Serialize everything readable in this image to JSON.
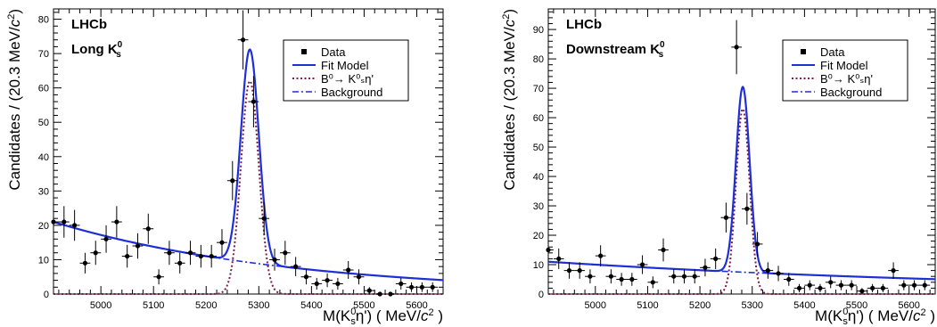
{
  "chart_data": [
    {
      "type": "scatter",
      "panel_label_top": "LHCb",
      "panel_label_bottom": "Long K",
      "panel_label_sub": "s",
      "panel_label_sup": "0",
      "ylabel_main": "Candidates / (20.3 MeV/",
      "ylabel_var": "c",
      "ylabel_sup": "2",
      "ylabel_end": ")",
      "xlabel_main": "M(K",
      "xlabel_sub": "s",
      "xlabel_sup": "0",
      "xlabel_mid": "η') ( MeV/",
      "xlabel_var": "c",
      "xlabel_sup2": "2",
      "xlabel_end": " )",
      "xlim": [
        4910,
        5650
      ],
      "ylim": [
        0,
        83
      ],
      "x_ticks": [
        5000,
        5100,
        5200,
        5300,
        5400,
        5500,
        5600
      ],
      "y_ticks": [
        0,
        10,
        20,
        30,
        40,
        50,
        60,
        70,
        80
      ],
      "legend": [
        {
          "label": "Data",
          "style": "marker"
        },
        {
          "label": "Fit Model",
          "style": "solid"
        },
        {
          "label": "B⁰→ K⁰ₛη'",
          "style": "dotted"
        },
        {
          "label": "Background",
          "style": "dashdot"
        }
      ],
      "colors": {
        "data": "#000000",
        "fit": "#1f2fd6",
        "signal": "#7b1e4d",
        "background": "#1f2fd6"
      },
      "data_points": {
        "x": [
          4910,
          4930,
          4950,
          4970,
          4990,
          5010,
          5030,
          5050,
          5070,
          5090,
          5110,
          5130,
          5150,
          5170,
          5190,
          5210,
          5230,
          5250,
          5270,
          5290,
          5310,
          5330,
          5350,
          5370,
          5390,
          5410,
          5430,
          5450,
          5470,
          5490,
          5510,
          5530,
          5550,
          5570,
          5590,
          5610,
          5630
        ],
        "y": [
          21,
          21,
          20,
          9,
          12,
          16,
          21,
          11,
          14,
          19,
          5,
          12,
          9,
          12,
          11,
          11,
          15,
          33,
          74,
          56,
          22,
          10,
          12,
          8,
          5,
          3,
          4,
          3,
          7,
          5,
          1,
          0,
          0,
          3,
          2,
          2,
          2
        ],
        "yerr": [
          4.6,
          4.6,
          4.5,
          3.0,
          3.5,
          4.0,
          4.6,
          3.3,
          3.7,
          4.4,
          2.2,
          3.5,
          3.0,
          3.5,
          3.3,
          3.3,
          3.9,
          5.7,
          8.6,
          7.5,
          4.7,
          3.2,
          3.5,
          2.8,
          2.2,
          1.7,
          2.0,
          1.7,
          2.6,
          2.2,
          1.0,
          0.5,
          0.5,
          1.7,
          1.4,
          1.4,
          1.4
        ]
      },
      "fit_model": {
        "bkg_a": 21,
        "bkg_tau": 450,
        "bkg_x0": 4910,
        "signal_mean": 5283,
        "signal_sigma": 17,
        "signal_amp": 62
      }
    },
    {
      "type": "scatter",
      "panel_label_top": "LHCb",
      "panel_label_bottom": "Downstream K",
      "panel_label_sub": "s",
      "panel_label_sup": "0",
      "ylabel_main": "Candidates / (20.3 MeV/",
      "ylabel_var": "c",
      "ylabel_sup": "2",
      "ylabel_end": ")",
      "xlabel_main": "M(K",
      "xlabel_sub": "s",
      "xlabel_sup": "0",
      "xlabel_mid": "η') ( MeV/",
      "xlabel_var": "c",
      "xlabel_sup2": "2",
      "xlabel_end": " )",
      "xlim": [
        4910,
        5650
      ],
      "ylim": [
        0,
        97
      ],
      "x_ticks": [
        5000,
        5100,
        5200,
        5300,
        5400,
        5500,
        5600
      ],
      "y_ticks": [
        0,
        10,
        20,
        30,
        40,
        50,
        60,
        70,
        80,
        90
      ],
      "legend": [
        {
          "label": "Data",
          "style": "marker"
        },
        {
          "label": "Fit Model",
          "style": "solid"
        },
        {
          "label": "B⁰→ K⁰ₛη'",
          "style": "dotted"
        },
        {
          "label": "Background",
          "style": "dashdot"
        }
      ],
      "colors": {
        "data": "#000000",
        "fit": "#1f2fd6",
        "signal": "#7b1e4d",
        "background": "#1f2fd6"
      },
      "data_points": {
        "x": [
          4910,
          4930,
          4950,
          4970,
          4990,
          5010,
          5030,
          5050,
          5070,
          5090,
          5110,
          5130,
          5150,
          5170,
          5190,
          5210,
          5230,
          5250,
          5270,
          5290,
          5310,
          5330,
          5350,
          5370,
          5390,
          5410,
          5430,
          5450,
          5470,
          5490,
          5510,
          5530,
          5550,
          5570,
          5590,
          5610,
          5630
        ],
        "y": [
          15,
          12,
          8,
          8,
          6,
          13,
          6,
          5,
          5,
          10,
          4,
          15,
          6,
          6,
          6,
          9,
          12,
          26,
          84,
          29,
          17,
          8,
          7,
          5,
          2,
          3,
          2,
          4,
          3,
          3,
          1,
          2,
          2,
          8,
          3,
          3,
          3
        ],
        "yerr": [
          3.9,
          3.5,
          2.8,
          2.8,
          2.4,
          3.6,
          2.4,
          2.2,
          2.2,
          3.2,
          2.0,
          3.9,
          2.4,
          2.4,
          2.4,
          3.0,
          3.5,
          5.1,
          9.2,
          5.4,
          4.1,
          2.8,
          2.6,
          2.2,
          1.4,
          1.7,
          1.4,
          2.0,
          1.7,
          1.7,
          1.0,
          1.4,
          1.4,
          2.8,
          1.7,
          1.7,
          1.7
        ]
      },
      "fit_model": {
        "bkg_a": 11,
        "bkg_tau": 950,
        "bkg_x0": 4910,
        "signal_mean": 5282,
        "signal_sigma": 13,
        "signal_amp": 63
      }
    }
  ]
}
